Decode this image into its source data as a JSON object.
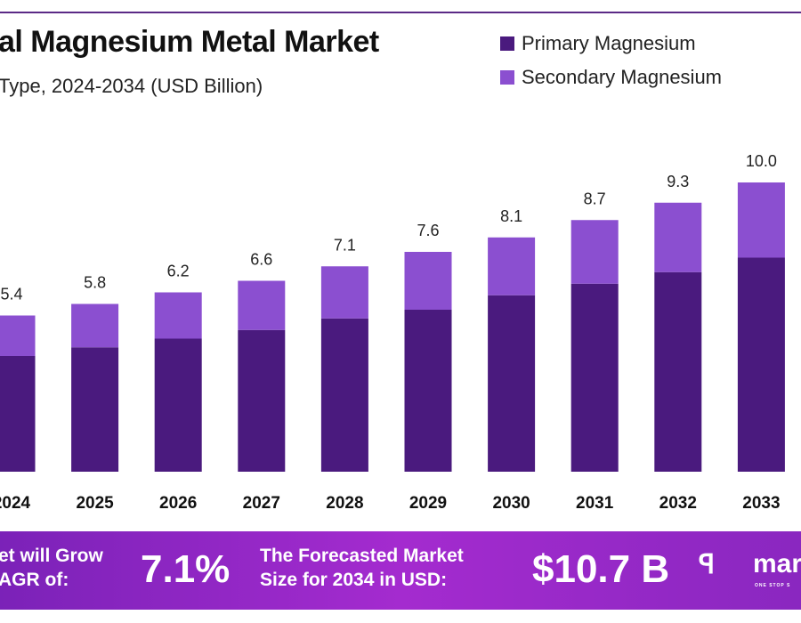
{
  "chart_data": {
    "type": "bar",
    "stacked": true,
    "title": "al Magnesium Metal Market",
    "subtitle": "Type, 2024-2034 (USD Billion)",
    "categories": [
      "2024",
      "2025",
      "2026",
      "2027",
      "2028",
      "2029",
      "2030",
      "2031",
      "2032",
      "2033"
    ],
    "series": [
      {
        "name": "Primary Magnesium",
        "color": "#4a1a7e",
        "values": [
          4.0,
          4.3,
          4.6,
          4.9,
          5.3,
          5.6,
          6.1,
          6.5,
          6.9,
          7.4
        ]
      },
      {
        "name": "Secondary Magnesium",
        "color": "#8b4fd0",
        "values": [
          1.4,
          1.5,
          1.6,
          1.7,
          1.8,
          2.0,
          2.0,
          2.2,
          2.4,
          2.6
        ]
      }
    ],
    "totals": [
      "5.4",
      "5.8",
      "6.2",
      "6.6",
      "7.1",
      "7.6",
      "8.1",
      "8.7",
      "9.3",
      "10.0"
    ],
    "ylim": [
      0,
      10
    ],
    "grid": false,
    "legend": "top-right"
  },
  "banner": {
    "growth_label_1": "et will Grow",
    "growth_label_2": "AGR of:",
    "cagr": "7.1%",
    "forecast_label_1": "The Forecasted Market",
    "forecast_label_2": "Size for 2034 in USD:",
    "forecast_value": "$10.7 B",
    "logo_text": "mar",
    "logo_tagline": "ONE STOP S"
  }
}
